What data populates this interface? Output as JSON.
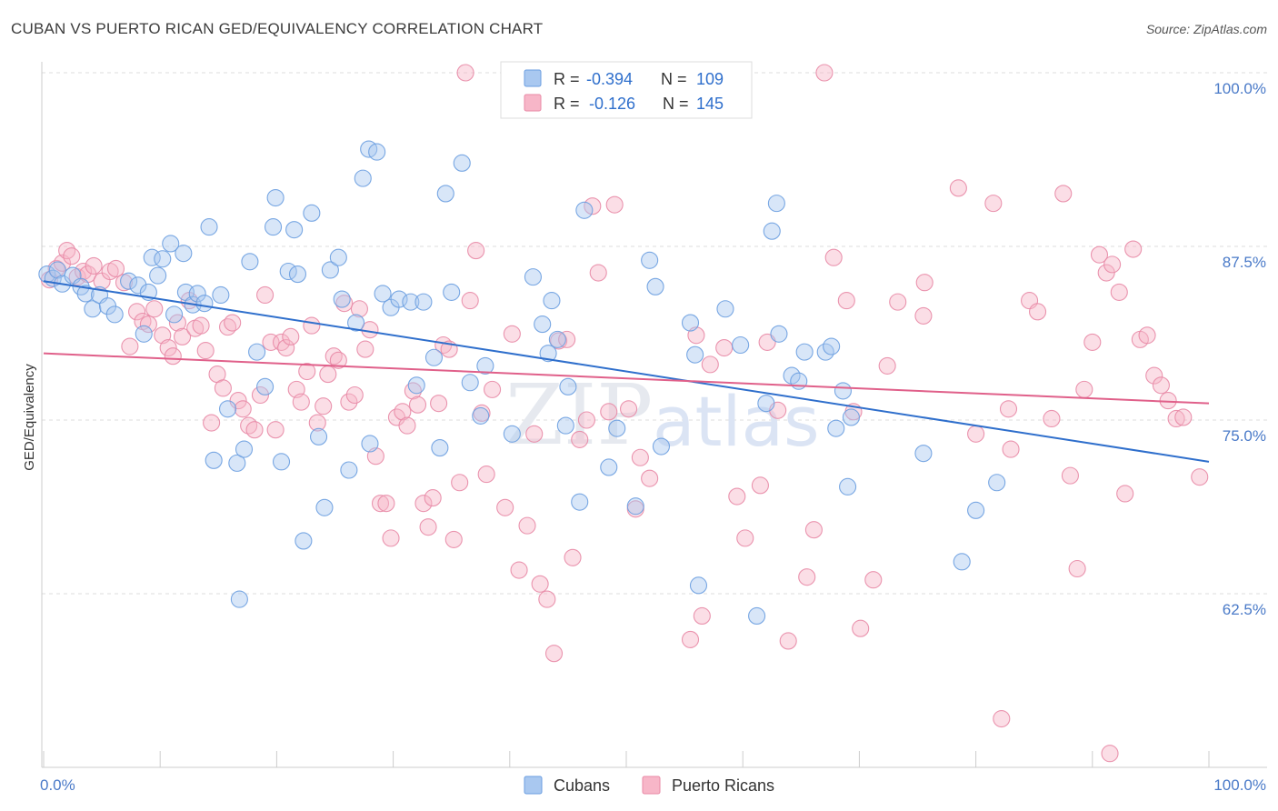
{
  "header": {
    "title": "CUBAN VS PUERTO RICAN GED/EQUIVALENCY CORRELATION CHART",
    "source": "Source: ZipAtlas.com"
  },
  "watermark": {
    "zip": "ZIP",
    "atlas": "atlas"
  },
  "legend_top": [
    {
      "r_label": "R =",
      "r_value": "-0.394",
      "n_label": "N =",
      "n_value": "109",
      "color": "#a9c8f0",
      "stroke": "#6b9ee0"
    },
    {
      "r_label": "R =",
      "r_value": "-0.126",
      "n_label": "N =",
      "n_value": "145",
      "color": "#f7b6c8",
      "stroke": "#e88aa6"
    }
  ],
  "legend_bottom": [
    {
      "label": "Cubans",
      "color": "#a9c8f0",
      "stroke": "#6b9ee0"
    },
    {
      "label": "Puerto Ricans",
      "color": "#f7b6c8",
      "stroke": "#e88aa6"
    }
  ],
  "chart_data": {
    "type": "scatter",
    "title": "CUBAN VS PUERTO RICAN GED/EQUIVALENCY CORRELATION CHART",
    "xlabel": "",
    "ylabel": "GED/Equivalency",
    "xlim": [
      0,
      100
    ],
    "ylim": [
      52,
      102
    ],
    "x_tick_labels": [
      "0.0%",
      "100.0%"
    ],
    "y_ticks": [
      62.5,
      75.0,
      87.5,
      100.0
    ],
    "y_tick_labels": [
      "62.5%",
      "75.0%",
      "87.5%",
      "100.0%"
    ],
    "grid": "horizontal dashed",
    "series": [
      {
        "name": "Cubans",
        "color": "#6b9ee0",
        "fill": "#a9c8f0",
        "trend": {
          "x": [
            0,
            100
          ],
          "y": [
            85.0,
            72.0
          ]
        },
        "points": [
          [
            0.3,
            85.5
          ],
          [
            0.8,
            85.2
          ],
          [
            1.2,
            85.8
          ],
          [
            1.6,
            84.8
          ],
          [
            2.5,
            85.4
          ],
          [
            3.2,
            84.6
          ],
          [
            3.6,
            84.1
          ],
          [
            4.2,
            83.0
          ],
          [
            4.8,
            84.0
          ],
          [
            5.5,
            83.2
          ],
          [
            6.1,
            82.6
          ],
          [
            7.3,
            85.0
          ],
          [
            8.1,
            84.7
          ],
          [
            8.6,
            81.2
          ],
          [
            9.0,
            84.2
          ],
          [
            9.3,
            86.7
          ],
          [
            9.8,
            85.4
          ],
          [
            10.2,
            86.6
          ],
          [
            10.9,
            87.7
          ],
          [
            11.2,
            82.6
          ],
          [
            12.0,
            87.0
          ],
          [
            12.2,
            84.2
          ],
          [
            12.8,
            83.3
          ],
          [
            13.2,
            84.1
          ],
          [
            13.8,
            83.4
          ],
          [
            14.2,
            88.9
          ],
          [
            14.6,
            72.1
          ],
          [
            15.2,
            84.0
          ],
          [
            15.8,
            75.8
          ],
          [
            16.6,
            71.9
          ],
          [
            16.8,
            62.1
          ],
          [
            17.2,
            72.9
          ],
          [
            17.7,
            86.4
          ],
          [
            18.3,
            79.9
          ],
          [
            19.0,
            77.4
          ],
          [
            19.7,
            88.9
          ],
          [
            19.9,
            91.0
          ],
          [
            20.4,
            72.0
          ],
          [
            21.0,
            85.7
          ],
          [
            21.5,
            88.7
          ],
          [
            21.8,
            85.5
          ],
          [
            22.3,
            66.3
          ],
          [
            23.0,
            89.9
          ],
          [
            23.6,
            73.8
          ],
          [
            24.1,
            68.7
          ],
          [
            24.6,
            85.8
          ],
          [
            25.3,
            86.7
          ],
          [
            25.6,
            83.7
          ],
          [
            26.2,
            71.4
          ],
          [
            26.8,
            82.0
          ],
          [
            27.4,
            92.4
          ],
          [
            27.9,
            94.5
          ],
          [
            28.0,
            73.3
          ],
          [
            28.6,
            94.3
          ],
          [
            29.1,
            84.1
          ],
          [
            29.8,
            83.1
          ],
          [
            30.5,
            83.7
          ],
          [
            31.5,
            83.5
          ],
          [
            32.0,
            77.5
          ],
          [
            32.6,
            83.5
          ],
          [
            33.5,
            79.5
          ],
          [
            34.0,
            73.0
          ],
          [
            34.5,
            91.3
          ],
          [
            35.0,
            84.2
          ],
          [
            35.9,
            93.5
          ],
          [
            36.6,
            77.7
          ],
          [
            37.5,
            75.3
          ],
          [
            37.9,
            78.9
          ],
          [
            40.2,
            74.0
          ],
          [
            42.0,
            85.3
          ],
          [
            42.8,
            81.9
          ],
          [
            43.3,
            79.8
          ],
          [
            43.6,
            83.6
          ],
          [
            44.1,
            80.8
          ],
          [
            44.8,
            74.6
          ],
          [
            45.0,
            77.4
          ],
          [
            46.0,
            69.1
          ],
          [
            46.4,
            90.1
          ],
          [
            48.5,
            71.6
          ],
          [
            49.2,
            74.4
          ],
          [
            50.8,
            68.8
          ],
          [
            52.0,
            86.5
          ],
          [
            52.5,
            84.6
          ],
          [
            53.0,
            73.1
          ],
          [
            55.5,
            82.0
          ],
          [
            55.9,
            79.7
          ],
          [
            56.2,
            63.1
          ],
          [
            58.5,
            83.0
          ],
          [
            59.8,
            80.4
          ],
          [
            61.2,
            60.9
          ],
          [
            62.0,
            76.2
          ],
          [
            62.5,
            88.6
          ],
          [
            62.9,
            90.6
          ],
          [
            63.1,
            81.2
          ],
          [
            64.2,
            78.2
          ],
          [
            64.8,
            77.8
          ],
          [
            65.3,
            79.9
          ],
          [
            67.1,
            79.9
          ],
          [
            67.6,
            80.3
          ],
          [
            68.0,
            74.4
          ],
          [
            68.6,
            77.1
          ],
          [
            69.0,
            70.2
          ],
          [
            69.3,
            75.2
          ],
          [
            75.5,
            72.6
          ],
          [
            78.8,
            64.8
          ],
          [
            80.0,
            68.5
          ],
          [
            81.8,
            70.5
          ]
        ]
      },
      {
        "name": "Puerto Ricans",
        "color": "#e88aa6",
        "fill": "#f7b6c8",
        "trend": {
          "x": [
            0,
            100
          ],
          "y": [
            79.8,
            76.2
          ]
        },
        "points": [
          [
            0.5,
            85.1
          ],
          [
            1.1,
            85.9
          ],
          [
            1.6,
            86.3
          ],
          [
            2.0,
            87.2
          ],
          [
            2.4,
            86.8
          ],
          [
            2.9,
            85.3
          ],
          [
            3.4,
            85.7
          ],
          [
            3.8,
            85.5
          ],
          [
            4.3,
            86.1
          ],
          [
            5.0,
            85.0
          ],
          [
            5.7,
            85.7
          ],
          [
            6.2,
            85.9
          ],
          [
            6.9,
            84.9
          ],
          [
            7.4,
            80.3
          ],
          [
            8.0,
            82.8
          ],
          [
            8.5,
            82.1
          ],
          [
            9.0,
            81.9
          ],
          [
            9.5,
            83.0
          ],
          [
            10.2,
            81.1
          ],
          [
            10.7,
            80.2
          ],
          [
            11.1,
            79.6
          ],
          [
            11.5,
            82.0
          ],
          [
            11.9,
            81.0
          ],
          [
            12.5,
            83.6
          ],
          [
            13.0,
            81.6
          ],
          [
            13.5,
            81.8
          ],
          [
            13.9,
            80.0
          ],
          [
            14.4,
            74.8
          ],
          [
            14.9,
            78.3
          ],
          [
            15.4,
            77.3
          ],
          [
            15.8,
            81.7
          ],
          [
            16.2,
            82.0
          ],
          [
            16.7,
            76.4
          ],
          [
            17.1,
            75.8
          ],
          [
            17.6,
            74.6
          ],
          [
            18.1,
            74.3
          ],
          [
            18.6,
            76.8
          ],
          [
            19.0,
            84.0
          ],
          [
            19.5,
            80.6
          ],
          [
            19.9,
            74.3
          ],
          [
            20.4,
            80.6
          ],
          [
            20.8,
            80.2
          ],
          [
            21.2,
            81.0
          ],
          [
            21.7,
            77.2
          ],
          [
            22.1,
            76.3
          ],
          [
            22.6,
            78.5
          ],
          [
            23.0,
            81.8
          ],
          [
            23.5,
            74.8
          ],
          [
            24.0,
            76.0
          ],
          [
            24.4,
            78.3
          ],
          [
            24.9,
            79.6
          ],
          [
            25.3,
            79.3
          ],
          [
            25.8,
            83.4
          ],
          [
            26.2,
            76.3
          ],
          [
            26.7,
            76.8
          ],
          [
            27.1,
            83.0
          ],
          [
            27.6,
            80.1
          ],
          [
            28.0,
            81.5
          ],
          [
            28.5,
            72.4
          ],
          [
            28.9,
            69.0
          ],
          [
            29.4,
            69.0
          ],
          [
            29.8,
            66.5
          ],
          [
            30.3,
            75.2
          ],
          [
            30.8,
            75.6
          ],
          [
            31.2,
            74.6
          ],
          [
            31.7,
            77.1
          ],
          [
            32.1,
            76.1
          ],
          [
            32.6,
            69.0
          ],
          [
            33.0,
            67.3
          ],
          [
            33.4,
            69.4
          ],
          [
            33.9,
            76.2
          ],
          [
            34.3,
            80.4
          ],
          [
            34.8,
            80.1
          ],
          [
            35.2,
            66.4
          ],
          [
            35.7,
            70.5
          ],
          [
            36.2,
            100.0
          ],
          [
            36.6,
            83.6
          ],
          [
            37.1,
            87.2
          ],
          [
            37.6,
            75.5
          ],
          [
            38.0,
            71.1
          ],
          [
            38.5,
            77.2
          ],
          [
            39.6,
            68.7
          ],
          [
            40.2,
            81.2
          ],
          [
            40.8,
            64.2
          ],
          [
            41.5,
            67.4
          ],
          [
            42.1,
            74.0
          ],
          [
            42.6,
            63.2
          ],
          [
            43.2,
            62.1
          ],
          [
            43.8,
            58.2
          ],
          [
            44.2,
            80.7
          ],
          [
            44.9,
            80.8
          ],
          [
            45.4,
            65.1
          ],
          [
            46.0,
            73.6
          ],
          [
            46.6,
            75.0
          ],
          [
            47.1,
            90.4
          ],
          [
            47.6,
            85.6
          ],
          [
            48.5,
            75.6
          ],
          [
            49.0,
            90.5
          ],
          [
            50.2,
            75.8
          ],
          [
            50.8,
            68.6
          ],
          [
            51.2,
            72.3
          ],
          [
            52.0,
            70.8
          ],
          [
            55.5,
            59.2
          ],
          [
            56.0,
            81.1
          ],
          [
            56.5,
            60.9
          ],
          [
            57.2,
            79.0
          ],
          [
            58.4,
            80.2
          ],
          [
            59.5,
            69.5
          ],
          [
            60.2,
            66.5
          ],
          [
            61.5,
            70.3
          ],
          [
            62.1,
            80.6
          ],
          [
            63.0,
            75.7
          ],
          [
            63.9,
            59.1
          ],
          [
            65.5,
            63.7
          ],
          [
            66.1,
            67.1
          ],
          [
            67.0,
            100.0
          ],
          [
            67.8,
            86.7
          ],
          [
            68.9,
            83.6
          ],
          [
            69.5,
            75.6
          ],
          [
            70.1,
            60.0
          ],
          [
            71.2,
            63.5
          ],
          [
            72.4,
            78.9
          ],
          [
            73.3,
            83.5
          ],
          [
            75.5,
            82.5
          ],
          [
            75.6,
            84.9
          ],
          [
            78.5,
            91.7
          ],
          [
            80.0,
            74.0
          ],
          [
            81.5,
            90.6
          ],
          [
            82.2,
            53.5
          ],
          [
            82.8,
            75.8
          ],
          [
            83.0,
            72.9
          ],
          [
            84.6,
            83.6
          ],
          [
            85.3,
            82.8
          ],
          [
            86.5,
            75.1
          ],
          [
            87.5,
            91.3
          ],
          [
            88.1,
            71.0
          ],
          [
            88.7,
            64.3
          ],
          [
            89.3,
            77.2
          ],
          [
            90.0,
            80.6
          ],
          [
            90.6,
            86.9
          ],
          [
            91.2,
            85.6
          ],
          [
            91.7,
            86.2
          ],
          [
            92.3,
            84.2
          ],
          [
            92.8,
            69.7
          ],
          [
            93.5,
            87.3
          ],
          [
            94.1,
            80.8
          ],
          [
            94.7,
            81.1
          ],
          [
            95.3,
            78.2
          ],
          [
            95.9,
            77.5
          ],
          [
            96.5,
            76.4
          ],
          [
            97.2,
            75.1
          ],
          [
            97.8,
            75.2
          ],
          [
            99.2,
            70.9
          ],
          [
            91.5,
            51.0
          ]
        ]
      }
    ]
  }
}
